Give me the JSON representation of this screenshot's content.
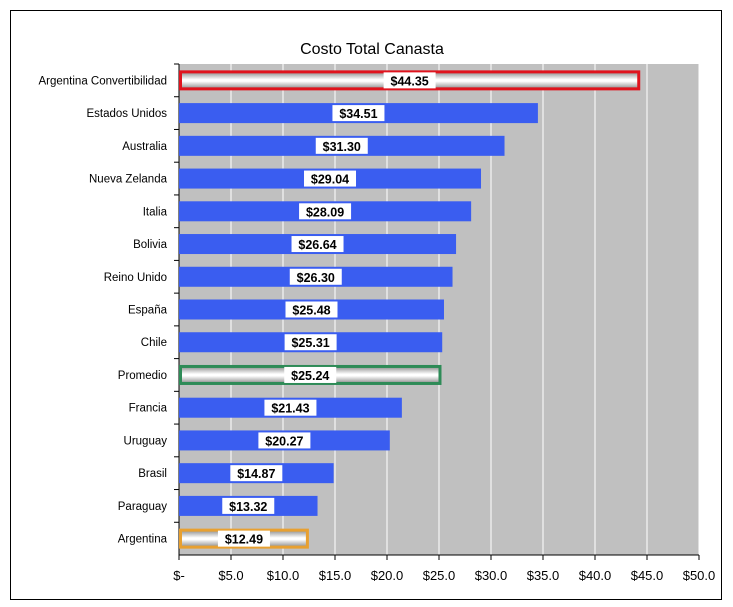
{
  "chart_data": {
    "type": "bar",
    "orientation": "horizontal",
    "title": "Costo Total Canasta",
    "xlabel": "",
    "ylabel": "",
    "xlim": [
      0,
      50
    ],
    "grid": true,
    "legend": "none",
    "tick_labels": [
      "$-",
      "$5.0",
      "$10.0",
      "$15.0",
      "$20.0",
      "$25.0",
      "$30.0",
      "$35.0",
      "$40.0",
      "$45.0",
      "$50.0"
    ],
    "tick_values": [
      0,
      5,
      10,
      15,
      20,
      25,
      30,
      35,
      40,
      45,
      50
    ],
    "categories": [
      "Argentina Convertibilidad",
      "Estados Unidos",
      "Australia",
      "Nueva Zelanda",
      "Italia",
      "Bolivia",
      "Reino Unido",
      "España",
      "Chile",
      "Promedio",
      "Francia",
      "Uruguay",
      "Brasil",
      "Paraguay",
      "Argentina"
    ],
    "values": [
      44.35,
      34.51,
      31.3,
      29.04,
      28.09,
      26.64,
      26.3,
      25.48,
      25.31,
      25.24,
      21.43,
      20.27,
      14.87,
      13.32,
      12.49
    ],
    "data_labels": [
      "$44.35",
      "$34.51",
      "$31.30",
      "$29.04",
      "$28.09",
      "$26.64",
      "$26.30",
      "$25.48",
      "$25.31",
      "$25.24",
      "$21.43",
      "$20.27",
      "$14.87",
      "$13.32",
      "$12.49"
    ],
    "highlight": {
      "Argentina Convertibilidad": "#e0141e",
      "Promedio": "#2e8b57",
      "Argentina": "#e8a030"
    }
  },
  "colors": {
    "bar": "#3a5df0",
    "plot_background": "#c0c0c0",
    "gridline": "#ffffff"
  }
}
